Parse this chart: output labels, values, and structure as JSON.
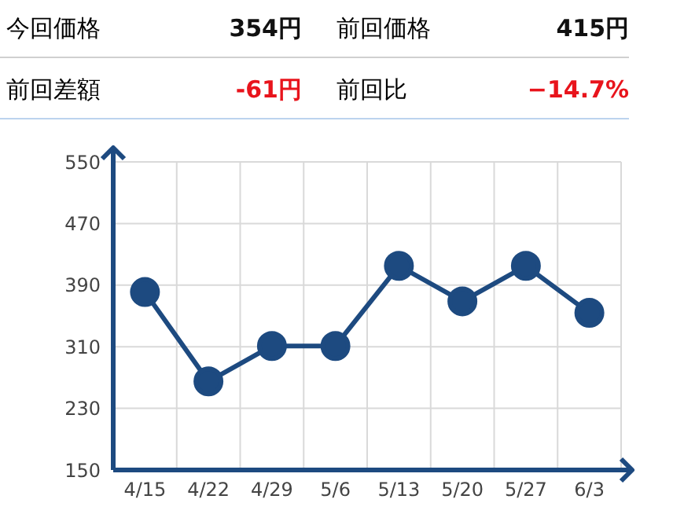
{
  "chart_data": {
    "type": "line",
    "annotations": [
      "今回価格",
      "354円",
      "前回価格",
      "415円",
      "前回差額",
      "-61円",
      "前回比",
      "−14.7%"
    ],
    "categories": [
      "4/15",
      "4/22",
      "4/29",
      "5/6",
      "5/13",
      "5/20",
      "5/27",
      "6/3"
    ],
    "series": [
      {
        "color": "#1d4a80",
        "values": [
          381,
          265,
          311,
          311,
          415,
          369,
          415,
          354
        ]
      }
    ],
    "ylim": [
      150,
      550
    ],
    "yticks": [
      150,
      230,
      310,
      390,
      470,
      550
    ],
    "grid": true,
    "marker": "circle",
    "line_style": "solid",
    "legend": false
  }
}
